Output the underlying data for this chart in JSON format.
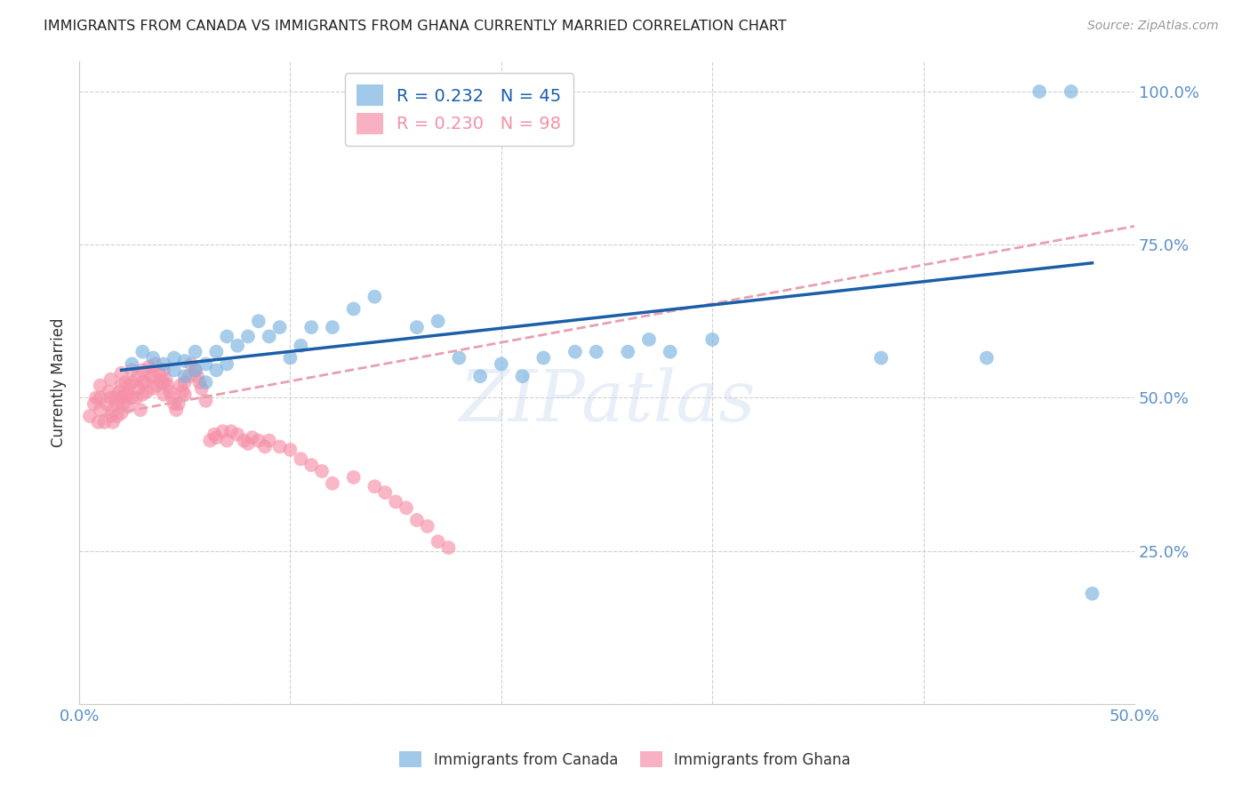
{
  "title": "IMMIGRANTS FROM CANADA VS IMMIGRANTS FROM GHANA CURRENTLY MARRIED CORRELATION CHART",
  "source": "Source: ZipAtlas.com",
  "ylabel": "Currently Married",
  "xlim": [
    0.0,
    0.5
  ],
  "ylim": [
    0.0,
    1.05
  ],
  "ytick_values": [
    0.0,
    0.25,
    0.5,
    0.75,
    1.0
  ],
  "xtick_values": [
    0.0,
    0.1,
    0.2,
    0.3,
    0.4,
    0.5
  ],
  "canada_R": 0.232,
  "canada_N": 45,
  "ghana_R": 0.23,
  "ghana_N": 98,
  "canada_color": "#7ab3e0",
  "ghana_color": "#f590a8",
  "trendline_canada_color": "#1a5fa8",
  "trendline_ghana_color": "#e8a0b0",
  "watermark": "ZIPatlas",
  "canada_scatter_x": [
    0.025,
    0.03,
    0.035,
    0.04,
    0.045,
    0.045,
    0.05,
    0.05,
    0.055,
    0.055,
    0.06,
    0.06,
    0.065,
    0.065,
    0.07,
    0.07,
    0.075,
    0.08,
    0.085,
    0.09,
    0.095,
    0.1,
    0.105,
    0.11,
    0.12,
    0.13,
    0.14,
    0.16,
    0.17,
    0.18,
    0.19,
    0.2,
    0.21,
    0.22,
    0.235,
    0.245,
    0.26,
    0.27,
    0.28,
    0.3,
    0.38,
    0.43,
    0.455,
    0.47,
    0.48
  ],
  "canada_scatter_y": [
    0.555,
    0.575,
    0.565,
    0.555,
    0.545,
    0.565,
    0.535,
    0.56,
    0.545,
    0.575,
    0.525,
    0.555,
    0.545,
    0.575,
    0.555,
    0.6,
    0.585,
    0.6,
    0.625,
    0.6,
    0.615,
    0.565,
    0.585,
    0.615,
    0.615,
    0.645,
    0.665,
    0.615,
    0.625,
    0.565,
    0.535,
    0.555,
    0.535,
    0.565,
    0.575,
    0.575,
    0.575,
    0.595,
    0.575,
    0.595,
    0.565,
    0.565,
    1.0,
    1.0,
    0.18
  ],
  "canada_trendline_x": [
    0.02,
    0.48
  ],
  "canada_trendline_y": [
    0.545,
    0.72
  ],
  "ghana_trendline_x": [
    0.01,
    0.5
  ],
  "ghana_trendline_y": [
    0.47,
    0.78
  ],
  "ghana_scatter_x": [
    0.005,
    0.007,
    0.008,
    0.009,
    0.01,
    0.01,
    0.01,
    0.012,
    0.013,
    0.014,
    0.015,
    0.015,
    0.015,
    0.016,
    0.016,
    0.017,
    0.018,
    0.018,
    0.019,
    0.02,
    0.02,
    0.02,
    0.02,
    0.021,
    0.022,
    0.022,
    0.023,
    0.023,
    0.024,
    0.025,
    0.025,
    0.025,
    0.027,
    0.028,
    0.028,
    0.029,
    0.03,
    0.03,
    0.03,
    0.031,
    0.032,
    0.033,
    0.034,
    0.035,
    0.035,
    0.036,
    0.037,
    0.038,
    0.039,
    0.04,
    0.04,
    0.04,
    0.041,
    0.042,
    0.043,
    0.044,
    0.045,
    0.046,
    0.047,
    0.048,
    0.049,
    0.05,
    0.05,
    0.052,
    0.053,
    0.055,
    0.056,
    0.057,
    0.058,
    0.06,
    0.062,
    0.064,
    0.065,
    0.068,
    0.07,
    0.072,
    0.075,
    0.078,
    0.08,
    0.082,
    0.085,
    0.088,
    0.09,
    0.095,
    0.1,
    0.105,
    0.11,
    0.115,
    0.12,
    0.13,
    0.14,
    0.145,
    0.15,
    0.155,
    0.16,
    0.165,
    0.17,
    0.175
  ],
  "ghana_scatter_y": [
    0.47,
    0.49,
    0.5,
    0.46,
    0.48,
    0.5,
    0.52,
    0.46,
    0.49,
    0.51,
    0.47,
    0.5,
    0.53,
    0.46,
    0.48,
    0.5,
    0.47,
    0.49,
    0.51,
    0.475,
    0.5,
    0.52,
    0.54,
    0.49,
    0.505,
    0.525,
    0.485,
    0.505,
    0.52,
    0.5,
    0.525,
    0.545,
    0.5,
    0.515,
    0.535,
    0.48,
    0.505,
    0.525,
    0.545,
    0.525,
    0.51,
    0.55,
    0.535,
    0.515,
    0.535,
    0.555,
    0.52,
    0.54,
    0.525,
    0.505,
    0.525,
    0.545,
    0.53,
    0.52,
    0.51,
    0.5,
    0.49,
    0.48,
    0.49,
    0.52,
    0.51,
    0.505,
    0.525,
    0.535,
    0.555,
    0.545,
    0.535,
    0.525,
    0.515,
    0.495,
    0.43,
    0.44,
    0.435,
    0.445,
    0.43,
    0.445,
    0.44,
    0.43,
    0.425,
    0.435,
    0.43,
    0.42,
    0.43,
    0.42,
    0.415,
    0.4,
    0.39,
    0.38,
    0.36,
    0.37,
    0.355,
    0.345,
    0.33,
    0.32,
    0.3,
    0.29,
    0.265,
    0.255
  ]
}
